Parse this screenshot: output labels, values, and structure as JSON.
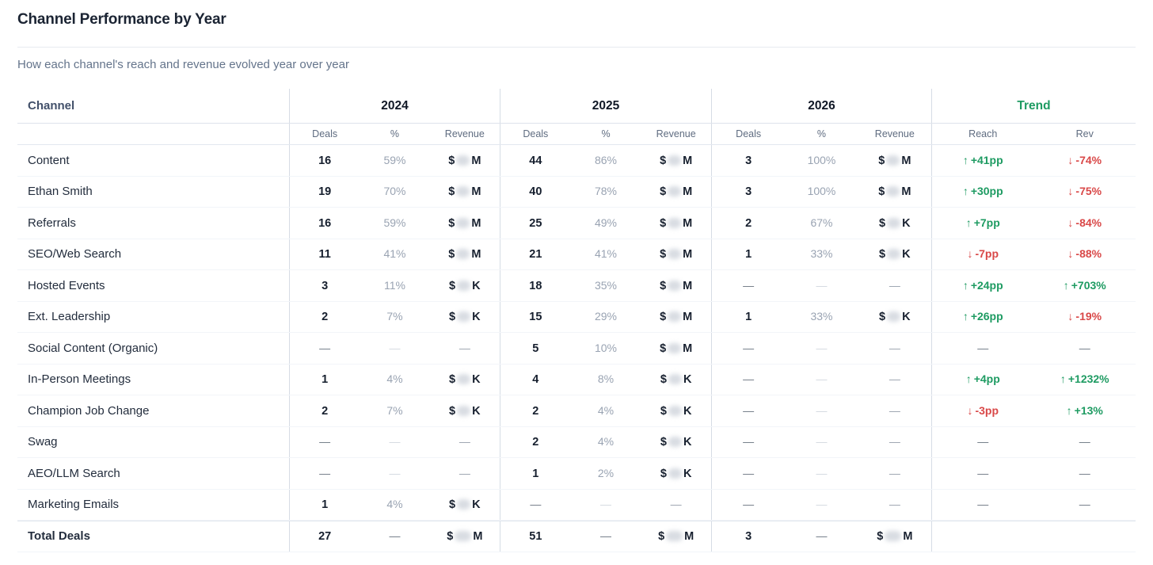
{
  "page": {
    "title": "Channel Performance by Year",
    "subtitle": "How each channel's reach and revenue evolved year over year"
  },
  "colors": {
    "positive_green": "#1e9b62",
    "negative_red": "#d94848",
    "trend_header_green": "#1e9b62"
  },
  "icons": {
    "up_arrow": "↑",
    "down_arrow": "↓",
    "empty_dash": "—"
  },
  "table": {
    "channel_header": "Channel",
    "year_groups": [
      {
        "label": "2024",
        "sub": [
          "Deals",
          "%",
          "Revenue"
        ]
      },
      {
        "label": "2025",
        "sub": [
          "Deals",
          "%",
          "Revenue"
        ]
      },
      {
        "label": "2026",
        "sub": [
          "Deals",
          "%",
          "Revenue"
        ]
      }
    ],
    "trend_group": {
      "label": "Trend",
      "sub": [
        "Reach",
        "Rev"
      ]
    },
    "rows": [
      {
        "channel": "Content",
        "y2024": {
          "deals": "16",
          "pct": "59%",
          "revenue": {
            "prefix": "$",
            "suffix": "M",
            "redacted": true
          }
        },
        "y2025": {
          "deals": "44",
          "pct": "86%",
          "revenue": {
            "prefix": "$",
            "suffix": "M",
            "redacted": true
          }
        },
        "y2026": {
          "deals": "3",
          "pct": "100%",
          "revenue": {
            "prefix": "$",
            "suffix": "M",
            "redacted": true
          }
        },
        "trend": {
          "reach": {
            "dir": "up",
            "value": "+41pp"
          },
          "rev": {
            "dir": "down",
            "value": "-74%"
          }
        }
      },
      {
        "channel": "Ethan Smith",
        "y2024": {
          "deals": "19",
          "pct": "70%",
          "revenue": {
            "prefix": "$",
            "suffix": "M",
            "redacted": true
          }
        },
        "y2025": {
          "deals": "40",
          "pct": "78%",
          "revenue": {
            "prefix": "$",
            "suffix": "M",
            "redacted": true
          }
        },
        "y2026": {
          "deals": "3",
          "pct": "100%",
          "revenue": {
            "prefix": "$",
            "suffix": "M",
            "redacted": true
          }
        },
        "trend": {
          "reach": {
            "dir": "up",
            "value": "+30pp"
          },
          "rev": {
            "dir": "down",
            "value": "-75%"
          }
        }
      },
      {
        "channel": "Referrals",
        "y2024": {
          "deals": "16",
          "pct": "59%",
          "revenue": {
            "prefix": "$",
            "suffix": "M",
            "redacted": true
          }
        },
        "y2025": {
          "deals": "25",
          "pct": "49%",
          "revenue": {
            "prefix": "$",
            "suffix": "M",
            "redacted": true
          }
        },
        "y2026": {
          "deals": "2",
          "pct": "67%",
          "revenue": {
            "prefix": "$",
            "suffix": "K",
            "redacted": true
          }
        },
        "trend": {
          "reach": {
            "dir": "up",
            "value": "+7pp"
          },
          "rev": {
            "dir": "down",
            "value": "-84%"
          }
        }
      },
      {
        "channel": "SEO/Web Search",
        "y2024": {
          "deals": "11",
          "pct": "41%",
          "revenue": {
            "prefix": "$",
            "suffix": "M",
            "redacted": true
          }
        },
        "y2025": {
          "deals": "21",
          "pct": "41%",
          "revenue": {
            "prefix": "$",
            "suffix": "M",
            "redacted": true
          }
        },
        "y2026": {
          "deals": "1",
          "pct": "33%",
          "revenue": {
            "prefix": "$",
            "suffix": "K",
            "redacted": true
          }
        },
        "trend": {
          "reach": {
            "dir": "down",
            "value": "-7pp"
          },
          "rev": {
            "dir": "down",
            "value": "-88%"
          }
        }
      },
      {
        "channel": "Hosted Events",
        "y2024": {
          "deals": "3",
          "pct": "11%",
          "revenue": {
            "prefix": "$",
            "suffix": "K",
            "redacted": true
          }
        },
        "y2025": {
          "deals": "18",
          "pct": "35%",
          "revenue": {
            "prefix": "$",
            "suffix": "M",
            "redacted": true
          }
        },
        "y2026": {
          "deals": null,
          "pct": null,
          "revenue": null
        },
        "trend": {
          "reach": {
            "dir": "up",
            "value": "+24pp"
          },
          "rev": {
            "dir": "up",
            "value": "+703%"
          }
        }
      },
      {
        "channel": "Ext. Leadership",
        "y2024": {
          "deals": "2",
          "pct": "7%",
          "revenue": {
            "prefix": "$",
            "suffix": "K",
            "redacted": true
          }
        },
        "y2025": {
          "deals": "15",
          "pct": "29%",
          "revenue": {
            "prefix": "$",
            "suffix": "M",
            "redacted": true
          }
        },
        "y2026": {
          "deals": "1",
          "pct": "33%",
          "revenue": {
            "prefix": "$",
            "suffix": "K",
            "redacted": true
          }
        },
        "trend": {
          "reach": {
            "dir": "up",
            "value": "+26pp"
          },
          "rev": {
            "dir": "down",
            "value": "-19%"
          }
        }
      },
      {
        "channel": "Social Content (Organic)",
        "y2024": {
          "deals": null,
          "pct": null,
          "revenue": null
        },
        "y2025": {
          "deals": "5",
          "pct": "10%",
          "revenue": {
            "prefix": "$",
            "suffix": "M",
            "redacted": true
          }
        },
        "y2026": {
          "deals": null,
          "pct": null,
          "revenue": null
        },
        "trend": {
          "reach": null,
          "rev": null
        }
      },
      {
        "channel": "In-Person Meetings",
        "y2024": {
          "deals": "1",
          "pct": "4%",
          "revenue": {
            "prefix": "$",
            "suffix": "K",
            "redacted": true
          }
        },
        "y2025": {
          "deals": "4",
          "pct": "8%",
          "revenue": {
            "prefix": "$",
            "suffix": "K",
            "redacted": true
          }
        },
        "y2026": {
          "deals": null,
          "pct": null,
          "revenue": null
        },
        "trend": {
          "reach": {
            "dir": "up",
            "value": "+4pp"
          },
          "rev": {
            "dir": "up",
            "value": "+1232%"
          }
        }
      },
      {
        "channel": "Champion Job Change",
        "y2024": {
          "deals": "2",
          "pct": "7%",
          "revenue": {
            "prefix": "$",
            "suffix": "K",
            "redacted": true
          }
        },
        "y2025": {
          "deals": "2",
          "pct": "4%",
          "revenue": {
            "prefix": "$",
            "suffix": "K",
            "redacted": true
          }
        },
        "y2026": {
          "deals": null,
          "pct": null,
          "revenue": null
        },
        "trend": {
          "reach": {
            "dir": "down",
            "value": "-3pp"
          },
          "rev": {
            "dir": "up",
            "value": "+13%"
          }
        }
      },
      {
        "channel": "Swag",
        "y2024": {
          "deals": null,
          "pct": null,
          "revenue": null
        },
        "y2025": {
          "deals": "2",
          "pct": "4%",
          "revenue": {
            "prefix": "$",
            "suffix": "K",
            "redacted": true
          }
        },
        "y2026": {
          "deals": null,
          "pct": null,
          "revenue": null
        },
        "trend": {
          "reach": null,
          "rev": null
        }
      },
      {
        "channel": "AEO/LLM Search",
        "y2024": {
          "deals": null,
          "pct": null,
          "revenue": null
        },
        "y2025": {
          "deals": "1",
          "pct": "2%",
          "revenue": {
            "prefix": "$",
            "suffix": "K",
            "redacted": true
          }
        },
        "y2026": {
          "deals": null,
          "pct": null,
          "revenue": null
        },
        "trend": {
          "reach": null,
          "rev": null
        }
      },
      {
        "channel": "Marketing Emails",
        "y2024": {
          "deals": "1",
          "pct": "4%",
          "revenue": {
            "prefix": "$",
            "suffix": "K",
            "redacted": true
          }
        },
        "y2025": {
          "deals": null,
          "pct": null,
          "revenue": null
        },
        "y2026": {
          "deals": null,
          "pct": null,
          "revenue": null
        },
        "trend": {
          "reach": null,
          "rev": null
        }
      },
      {
        "channel": "Total Deals",
        "total": true,
        "y2024": {
          "deals": "27",
          "pct": null,
          "revenue": {
            "prefix": "$",
            "suffix": "M",
            "redacted": true
          }
        },
        "y2025": {
          "deals": "51",
          "pct": null,
          "revenue": {
            "prefix": "$",
            "suffix": "M",
            "redacted": true
          }
        },
        "y2026": {
          "deals": "3",
          "pct": null,
          "revenue": {
            "prefix": "$",
            "suffix": "M",
            "redacted": true
          }
        },
        "trend": null
      }
    ]
  }
}
